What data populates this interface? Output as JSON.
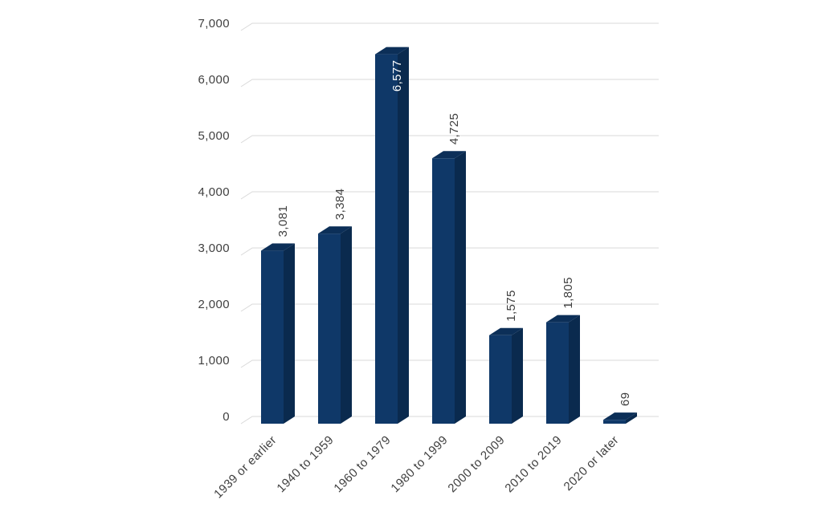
{
  "chart_data": {
    "type": "bar",
    "style": "3d-column",
    "title": "",
    "xlabel": "",
    "ylabel": "",
    "categories": [
      "1939 or earlier",
      "1940 to 1959",
      "1960 to 1979",
      "1980 to 1999",
      "2000 to 2009",
      "2010 to 2019",
      "2020 or later"
    ],
    "values": [
      3081,
      3384,
      6577,
      4725,
      1575,
      1805,
      69
    ],
    "value_labels": [
      "3,081",
      "3,384",
      "6,577",
      "4,725",
      "1,575",
      "1,805",
      "69"
    ],
    "label_inside": [
      false,
      false,
      true,
      false,
      false,
      false,
      false
    ],
    "ylim": [
      0,
      7000
    ],
    "ytick_interval": 1000,
    "ytick_labels": [
      "0",
      "1,000",
      "2,000",
      "3,000",
      "4,000",
      "5,000",
      "6,000",
      "7,000"
    ],
    "grid": true,
    "legend": "none",
    "colors": {
      "bar_front": "#0f3868",
      "bar_side": "#0a2a4e",
      "bar_top": "#0c2f58",
      "gridline": "#d9d9d9",
      "text": "#404040",
      "label_inside_text": "#ffffff",
      "background": "#ffffff"
    }
  }
}
